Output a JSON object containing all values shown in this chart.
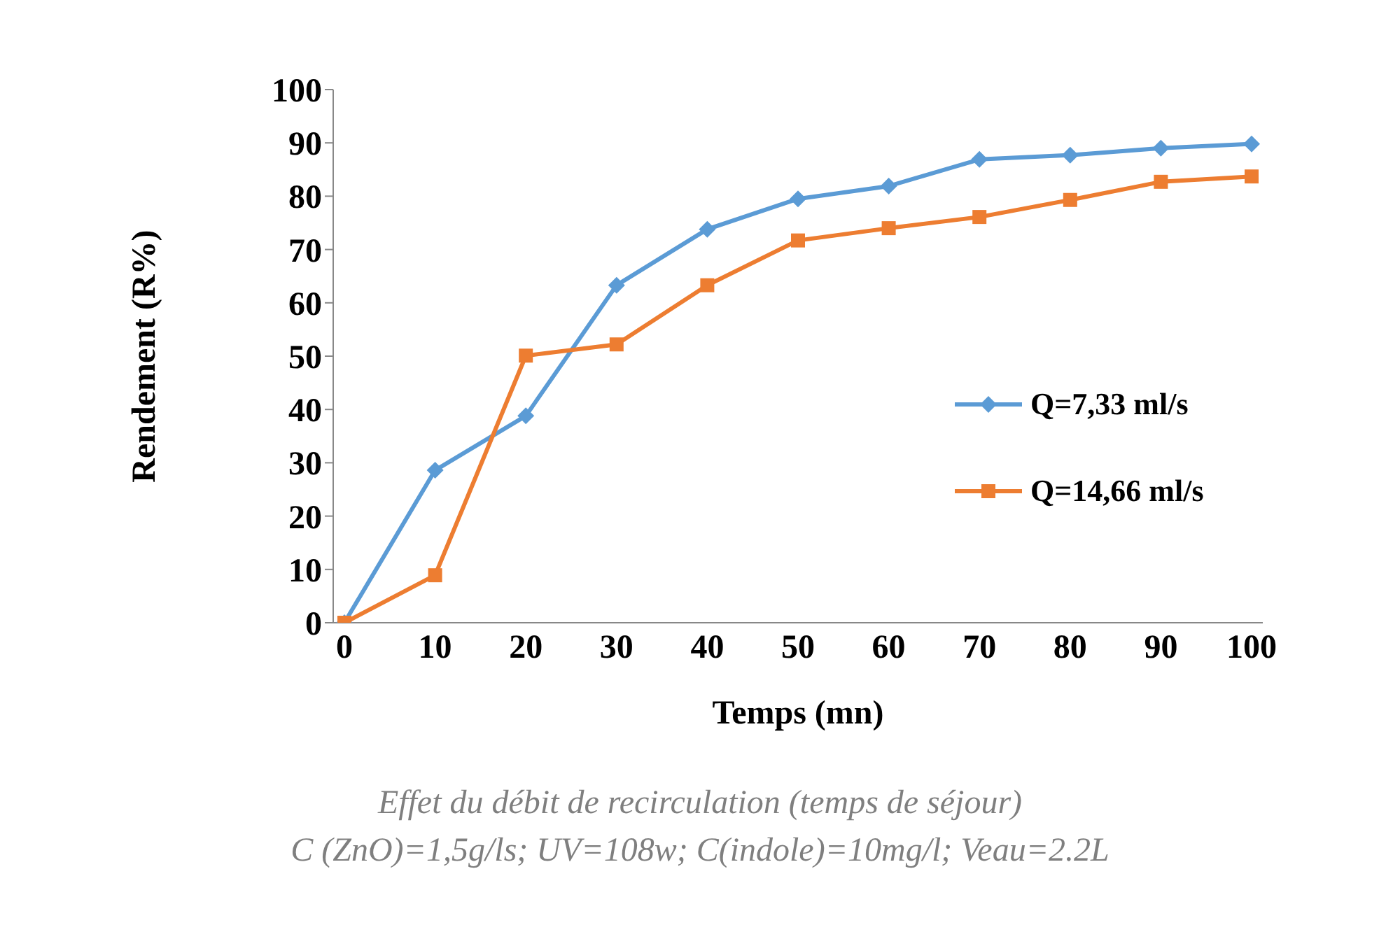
{
  "chart_data": {
    "type": "line",
    "xlabel": "Temps (mn)",
    "ylabel": "Rendement (R%)",
    "categories": [
      "0",
      "10",
      "20",
      "30",
      "40",
      "50",
      "60",
      "70",
      "80",
      "90",
      "100"
    ],
    "ylim": [
      0,
      100
    ],
    "yticks": [
      0,
      10,
      20,
      30,
      40,
      50,
      60,
      70,
      80,
      90,
      100
    ],
    "grid": false,
    "legend": "right",
    "line_style": "solid",
    "series": [
      {
        "name": "Q=7,33 ml/s",
        "color": "#5b9bd5",
        "marker": "diamond",
        "values": [
          0,
          28.6,
          38.8,
          63.3,
          73.8,
          79.5,
          81.9,
          86.9,
          87.7,
          89.0,
          89.8
        ]
      },
      {
        "name": "Q=14,66 ml/s",
        "color": "#ed7d31",
        "marker": "square",
        "values": [
          0,
          8.9,
          50.1,
          52.2,
          63.3,
          71.7,
          74.0,
          76.1,
          79.3,
          82.7,
          83.7
        ]
      }
    ],
    "annotations": [
      "Effet du débit de recirculation (temps de séjour)",
      "C (ZnO)=1,5g/ls; UV=108w; C(indole)=10mg/l; Veau=2.2L"
    ]
  }
}
